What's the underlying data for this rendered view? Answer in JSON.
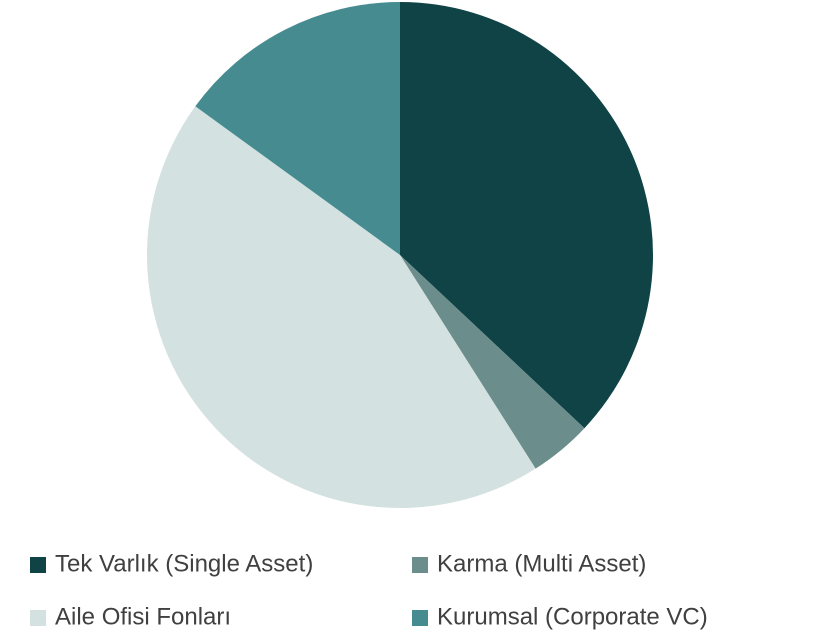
{
  "chart_data": {
    "type": "pie",
    "categories": [
      "Tek Varlık (Single Asset)",
      "Karma (Multi Asset)",
      "Aile Ofisi Fonları",
      "Kurumsal (Corporate VC)"
    ],
    "values": [
      37,
      4,
      44,
      15
    ],
    "colors": [
      "#0f4346",
      "#6b8d8c",
      "#d3e1e0",
      "#468b90"
    ],
    "legend": "bottom"
  }
}
